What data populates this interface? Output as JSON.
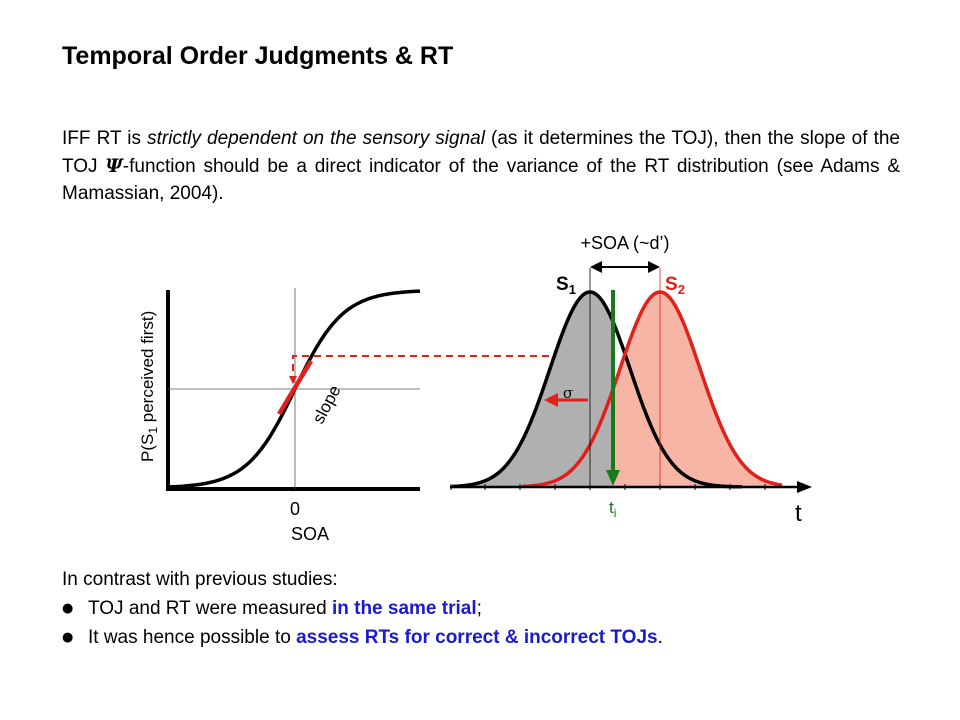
{
  "title": "Temporal Order Judgments & RT",
  "intro": {
    "p1": "IFF RT is ",
    "p2": "strictly dependent on the sensory signal",
    "p3": " (as it determines the TOJ), then the slope of the TOJ ",
    "psi": "Ψ",
    "p4": "-function should be a direct indicator of the variance of the RT distribution (see Adams & Mamassian, 2004)."
  },
  "psychometric": {
    "ylabel_prefix": "P(S",
    "ylabel_sub": "1",
    "ylabel_suffix": " perceived first)",
    "tick_zero": "0",
    "xlabel": "SOA",
    "slope_label": "slope"
  },
  "distributions": {
    "soa_label": "+SOA (~d’)",
    "s1_main": "S",
    "s1_sub": "1",
    "s2_main": "S",
    "s2_sub": "2",
    "sigma": "σ",
    "ti_main": "t",
    "ti_sub": "i",
    "t_axis": "t"
  },
  "contrast": {
    "heading": "In contrast with previous studies:",
    "item1_pre": "TOJ and RT were measured ",
    "item1_hl": "in the same trial",
    "item1_post": ";",
    "item2_pre": "It was hence possible to ",
    "item2_hl": "assess RTs for correct & incorrect TOJs",
    "item2_post": "."
  },
  "colors": {
    "red": "#e0201b",
    "green": "#1a7a1a",
    "s1_fill": "#b0b0b0",
    "s2_fill": "#f7b5a6",
    "highlight": "#1a1ad0"
  }
}
